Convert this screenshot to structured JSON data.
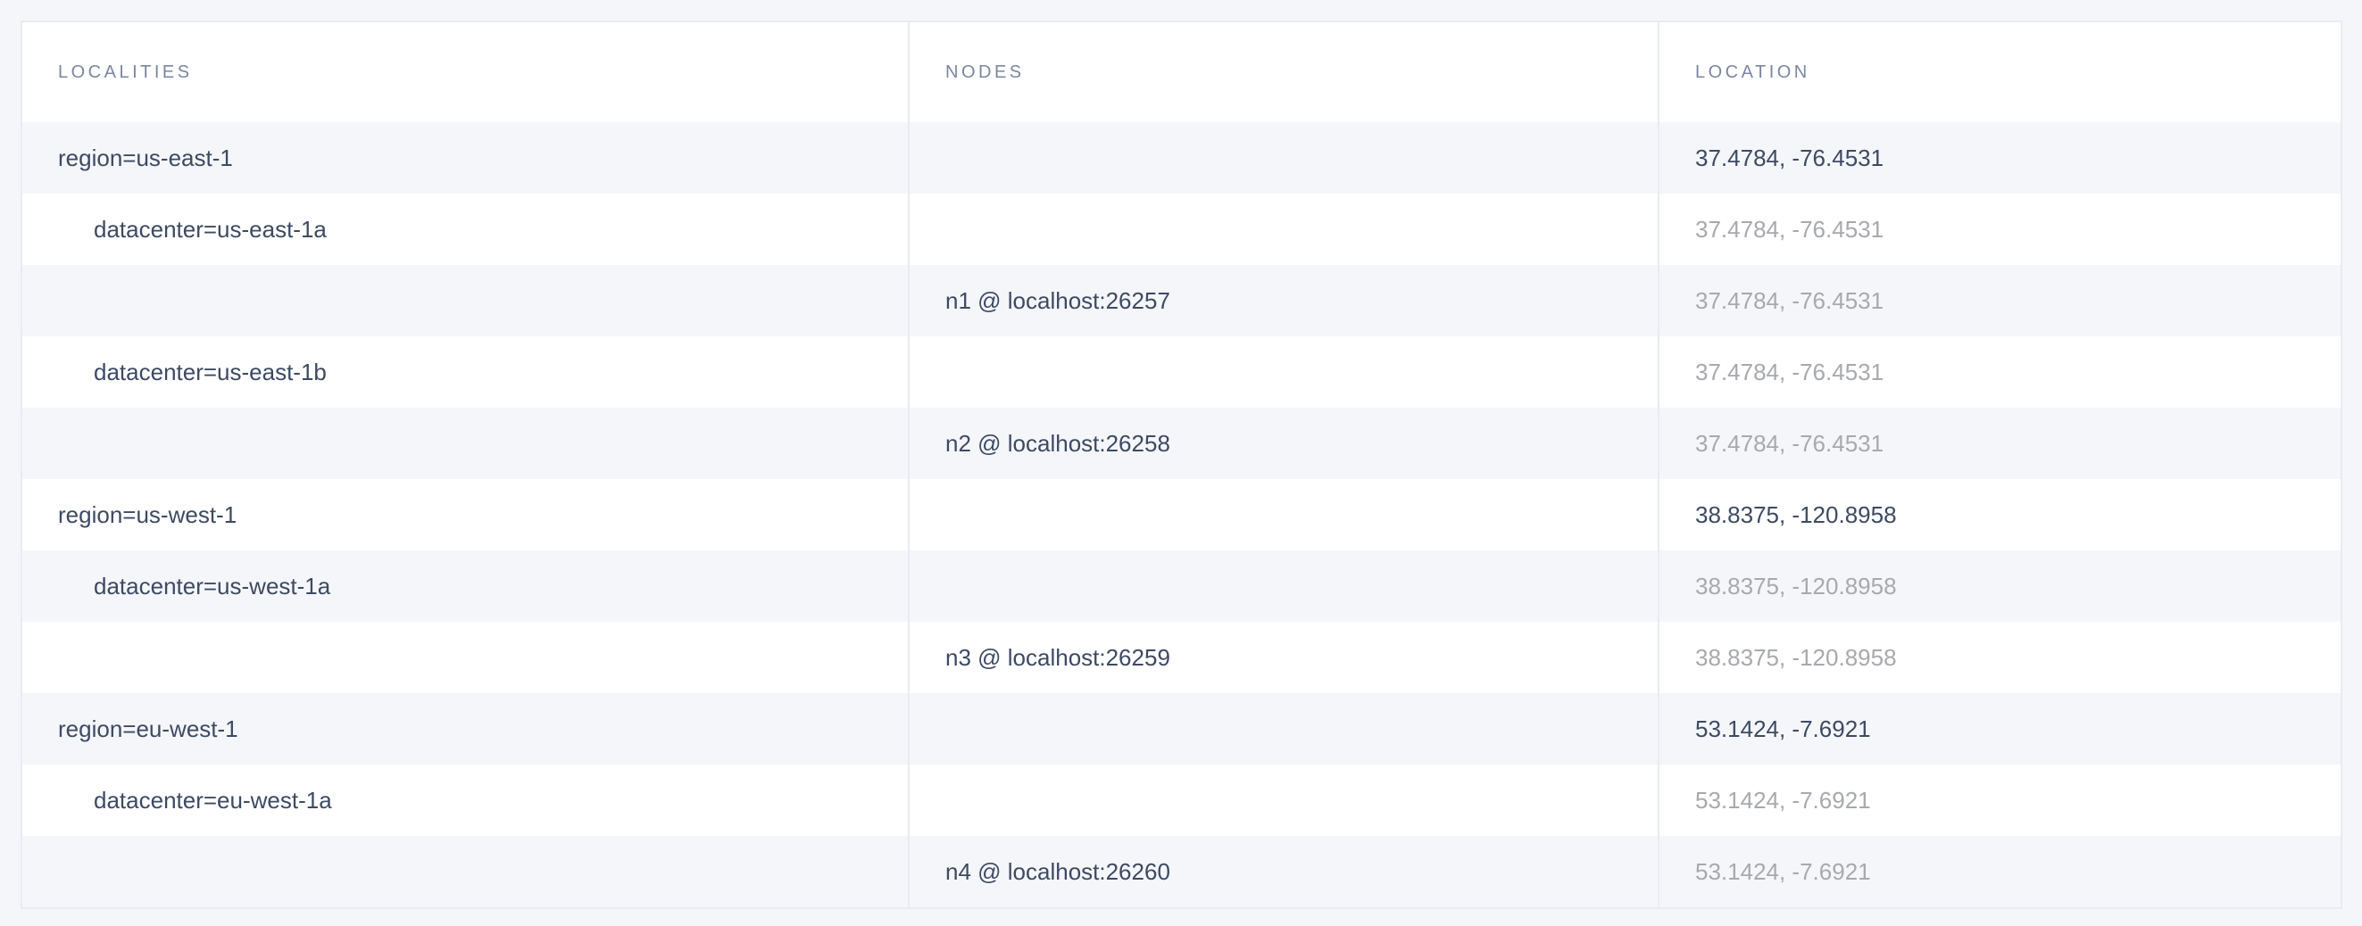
{
  "table": {
    "columns": [
      "LOCALITIES",
      "NODES",
      "LOCATION"
    ],
    "rows": [
      {
        "locality": "region=us-east-1",
        "level": 0,
        "node": "",
        "location": "37.4784, -76.4531",
        "location_muted": false
      },
      {
        "locality": "datacenter=us-east-1a",
        "level": 1,
        "node": "",
        "location": "37.4784, -76.4531",
        "location_muted": true
      },
      {
        "locality": "",
        "level": 2,
        "node": "n1 @ localhost:26257",
        "location": "37.4784, -76.4531",
        "location_muted": true
      },
      {
        "locality": "datacenter=us-east-1b",
        "level": 1,
        "node": "",
        "location": "37.4784, -76.4531",
        "location_muted": true
      },
      {
        "locality": "",
        "level": 2,
        "node": "n2 @ localhost:26258",
        "location": "37.4784, -76.4531",
        "location_muted": true
      },
      {
        "locality": "region=us-west-1",
        "level": 0,
        "node": "",
        "location": "38.8375, -120.8958",
        "location_muted": false
      },
      {
        "locality": "datacenter=us-west-1a",
        "level": 1,
        "node": "",
        "location": "38.8375, -120.8958",
        "location_muted": true
      },
      {
        "locality": "",
        "level": 2,
        "node": "n3 @ localhost:26259",
        "location": "38.8375, -120.8958",
        "location_muted": true
      },
      {
        "locality": "region=eu-west-1",
        "level": 0,
        "node": "",
        "location": "53.1424, -7.6921",
        "location_muted": false
      },
      {
        "locality": "datacenter=eu-west-1a",
        "level": 1,
        "node": "",
        "location": "53.1424, -7.6921",
        "location_muted": true
      },
      {
        "locality": "",
        "level": 2,
        "node": "n4 @ localhost:26260",
        "location": "53.1424, -7.6921",
        "location_muted": true
      }
    ]
  },
  "colors": {
    "text": "#3d4a63",
    "muted_text": "#a7a9ad",
    "header_text": "#7c86a2",
    "stripe": "#f5f6fa",
    "border": "#e8ebf1"
  }
}
